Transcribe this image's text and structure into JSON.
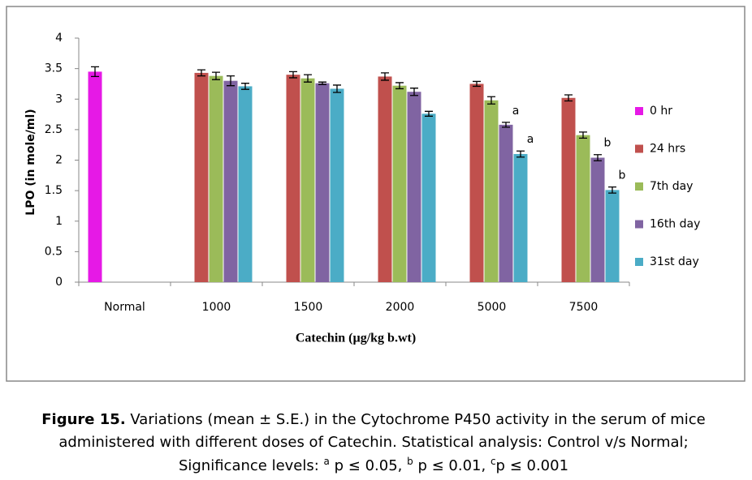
{
  "chart_data": {
    "type": "bar",
    "ylabel": "LPO (in mole/ml)",
    "xlabel": "Catechin (µg/kg b.wt)",
    "categories": [
      "Normal",
      "1000",
      "1500",
      "2000",
      "5000",
      "7500"
    ],
    "series": [
      {
        "name": "0 hr",
        "color": "#e619e6",
        "values": [
          3.45,
          null,
          null,
          null,
          null,
          null
        ],
        "errors": [
          0.08,
          null,
          null,
          null,
          null,
          null
        ]
      },
      {
        "name": "24 hrs",
        "color": "#c0504d",
        "values": [
          null,
          3.43,
          3.4,
          3.37,
          3.25,
          3.02
        ],
        "errors": [
          null,
          0.05,
          0.05,
          0.06,
          0.04,
          0.05
        ]
      },
      {
        "name": "7th day",
        "color": "#9bbb59",
        "values": [
          null,
          3.38,
          3.34,
          3.22,
          2.98,
          2.41
        ],
        "errors": [
          null,
          0.06,
          0.06,
          0.05,
          0.06,
          0.05
        ]
      },
      {
        "name": "16th day",
        "color": "#8064a2",
        "values": [
          null,
          3.3,
          3.26,
          3.12,
          2.58,
          2.04
        ],
        "errors": [
          null,
          0.08,
          0.02,
          0.06,
          0.04,
          0.05
        ]
      },
      {
        "name": "31st day",
        "color": "#4bacc6",
        "values": [
          null,
          3.21,
          3.17,
          2.76,
          2.1,
          1.51
        ],
        "errors": [
          null,
          0.05,
          0.06,
          0.04,
          0.05,
          0.05
        ]
      }
    ],
    "annotations": [
      {
        "text": "a",
        "category": "5000",
        "series": "16th day"
      },
      {
        "text": "a",
        "category": "5000",
        "series": "31st day"
      },
      {
        "text": "b",
        "category": "7500",
        "series": "16th day"
      },
      {
        "text": "b",
        "category": "7500",
        "series": "31st day"
      }
    ],
    "ylim": [
      0,
      4
    ],
    "yticks": [
      0,
      0.5,
      1,
      1.5,
      2,
      2.5,
      3,
      3.5,
      4
    ],
    "grid": false,
    "legend": "right"
  },
  "caption": {
    "label": "Figure 15.",
    "line1": " Variations (mean ± S.E.) in the Cytochrome P450 activity in the serum of mice",
    "line2": "administered with different doses of Catechin.  Statistical analysis: Control v/s Normal;",
    "line3": [
      {
        "text": "Significance levels: "
      },
      {
        "sup": "a"
      },
      {
        "text": " p ≤ 0.05, "
      },
      {
        "sup": "b"
      },
      {
        "text": " p ≤ 0.01, "
      },
      {
        "sup": "c"
      },
      {
        "text": "p  ≤ 0.001"
      }
    ]
  }
}
